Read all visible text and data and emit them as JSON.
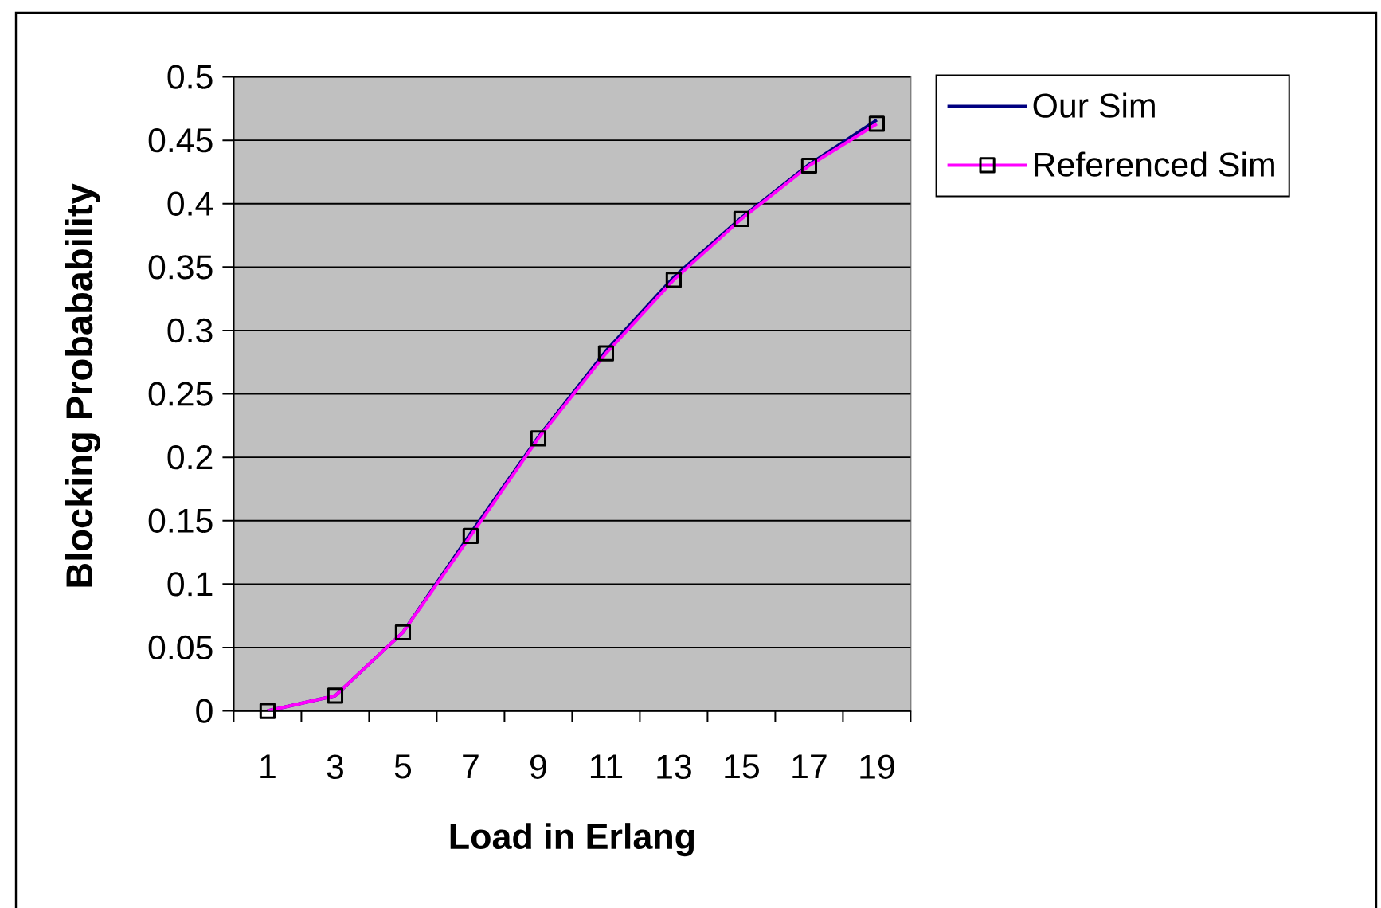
{
  "chart_data": {
    "type": "line",
    "xlabel": "Load in Erlang",
    "ylabel": "Blocking Probabability",
    "categories": [
      "1",
      "3",
      "5",
      "7",
      "9",
      "11",
      "13",
      "15",
      "17",
      "19"
    ],
    "series": [
      {
        "name": "Our Sim",
        "color": "#000080",
        "values": [
          0,
          0.012,
          0.062,
          0.14,
          0.216,
          0.284,
          0.342,
          0.389,
          0.431,
          0.466
        ]
      },
      {
        "name": "Referenced Sim",
        "color": "#ff00ff",
        "marker": "square",
        "values": [
          0,
          0.012,
          0.062,
          0.138,
          0.215,
          0.282,
          0.34,
          0.388,
          0.43,
          0.463
        ]
      }
    ],
    "ylim": [
      0,
      0.5
    ],
    "yticks": [
      0,
      0.05,
      0.1,
      0.15,
      0.2,
      0.25,
      0.3,
      0.35,
      0.4,
      0.45,
      0.5
    ],
    "grid": "y",
    "legend": "top right"
  }
}
